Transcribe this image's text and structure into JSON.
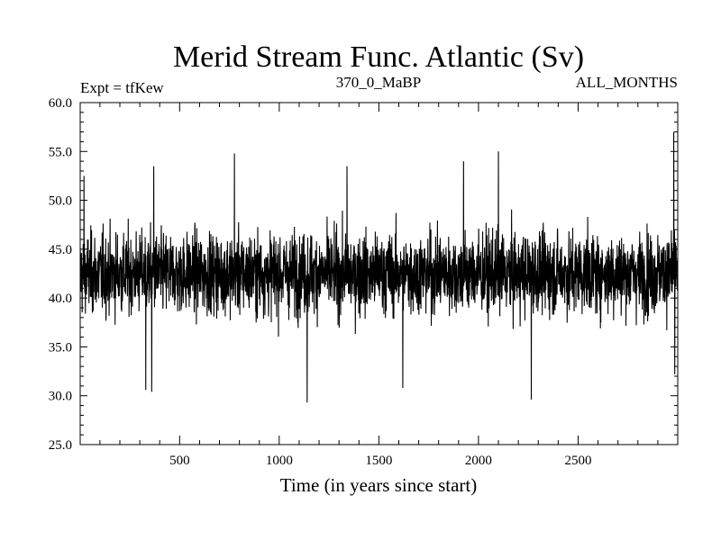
{
  "chart_data": {
    "type": "line",
    "title": "Merid Stream Func. Atlantic (Sv)",
    "header_left": "Expt = tfKew",
    "header_center": "370_0_MaBP",
    "header_right": "ALL_MONTHS",
    "xlabel": "Time (in years since start)",
    "ylabel": "",
    "xlim": [
      1,
      3000
    ],
    "ylim": [
      25.0,
      60.0
    ],
    "x_ticks": [
      500,
      1000,
      1500,
      2000,
      2500
    ],
    "x_tick_labels": [
      "500",
      "1000",
      "1500",
      "2000",
      "2500"
    ],
    "y_ticks": [
      25.0,
      30.0,
      35.0,
      40.0,
      45.0,
      50.0,
      55.0,
      60.0
    ],
    "y_tick_labels": [
      "25.0",
      "30.0",
      "35.0",
      "40.0",
      "45.0",
      "50.0",
      "55.0",
      "60.0"
    ],
    "series_stats": {
      "mean": 42.5,
      "typical_min": 35.0,
      "typical_max": 50.0,
      "min": 29.3,
      "max": 57.0
    },
    "peaks": [
      {
        "x": 20,
        "y": 52.5
      },
      {
        "x": 370,
        "y": 53.5
      },
      {
        "x": 775,
        "y": 54.8
      },
      {
        "x": 1340,
        "y": 53.5
      },
      {
        "x": 1925,
        "y": 54.0
      },
      {
        "x": 2100,
        "y": 55.0
      },
      {
        "x": 2980,
        "y": 57.0
      }
    ],
    "troughs": [
      {
        "x": 330,
        "y": 30.6
      },
      {
        "x": 360,
        "y": 30.4
      },
      {
        "x": 1140,
        "y": 29.3
      },
      {
        "x": 1620,
        "y": 30.8
      },
      {
        "x": 2265,
        "y": 29.6
      },
      {
        "x": 2985,
        "y": 32.2
      }
    ]
  }
}
